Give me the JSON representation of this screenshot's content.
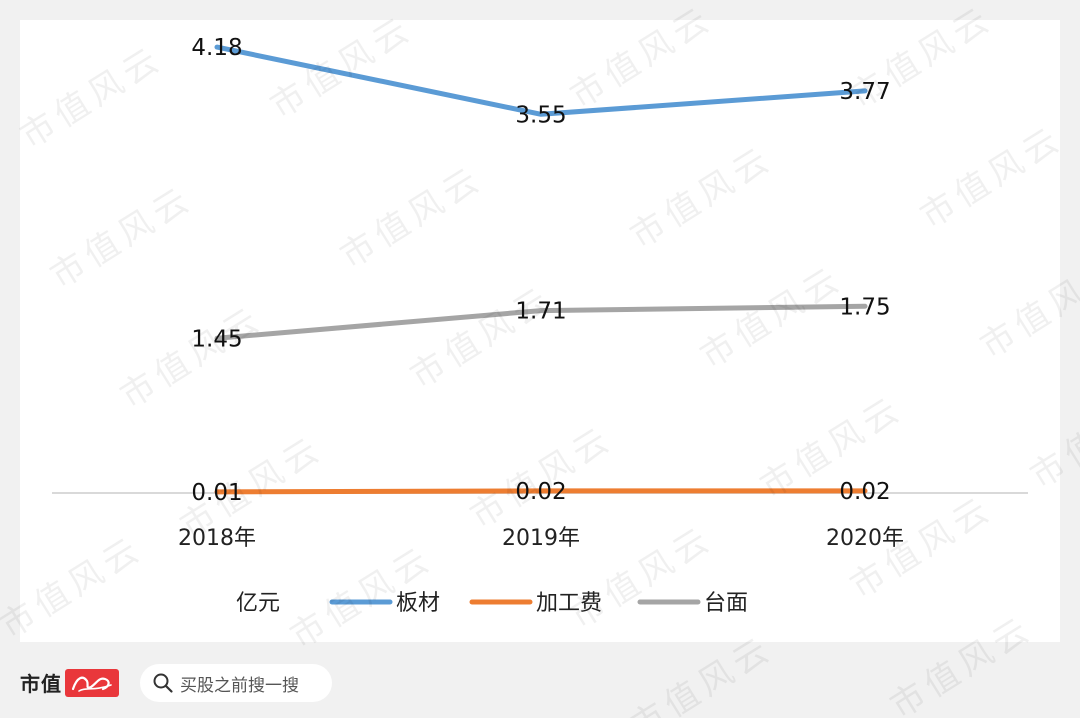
{
  "chart_data": {
    "type": "line",
    "categories": [
      "2018年",
      "2019年",
      "2020年"
    ],
    "unit_label": "亿元",
    "series": [
      {
        "name": "板材",
        "color": "#5b9bd5",
        "values": [
          4.18,
          3.55,
          3.77
        ],
        "labels": [
          "4.18",
          "3.55",
          "3.77"
        ]
      },
      {
        "name": "加工费",
        "color": "#ed7d31",
        "values": [
          0.01,
          0.02,
          0.02
        ],
        "labels": [
          "0.01",
          "0.02",
          "0.02"
        ]
      },
      {
        "name": "台面",
        "color": "#a5a5a5",
        "values": [
          1.45,
          1.71,
          1.75
        ],
        "labels": [
          "1.45",
          "1.71",
          "1.75"
        ]
      }
    ],
    "ylim": [
      0,
      4.5
    ],
    "grid": false,
    "legend_position": "bottom"
  },
  "watermark": "市值风云",
  "footer": {
    "brand": "市值",
    "search_placeholder": "买股之前搜一搜"
  }
}
